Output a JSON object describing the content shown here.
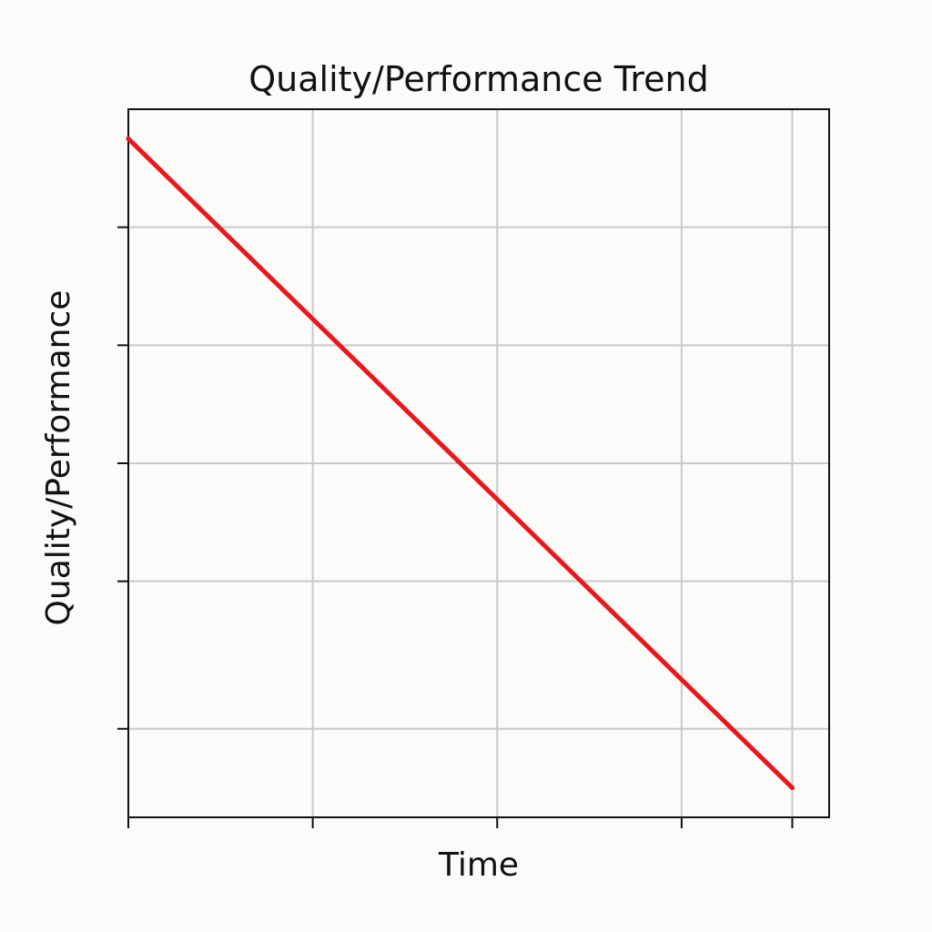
{
  "chart_data": {
    "type": "line",
    "title": "Quality/Performance Trend",
    "xlabel": "Time",
    "ylabel": "Quality/Performance",
    "xlim": [
      0,
      3.8
    ],
    "ylim": [
      0,
      6
    ],
    "x_ticks": [
      0,
      1,
      2,
      3,
      3.6
    ],
    "y_ticks": [
      0.75,
      2,
      3,
      4,
      5
    ],
    "x_tick_labels": [],
    "y_tick_labels": [],
    "grid": true,
    "legend": "none",
    "series": [
      {
        "color": "#e8181c",
        "x": [
          0.0,
          3.6
        ],
        "y": [
          5.75,
          0.25
        ]
      }
    ]
  }
}
